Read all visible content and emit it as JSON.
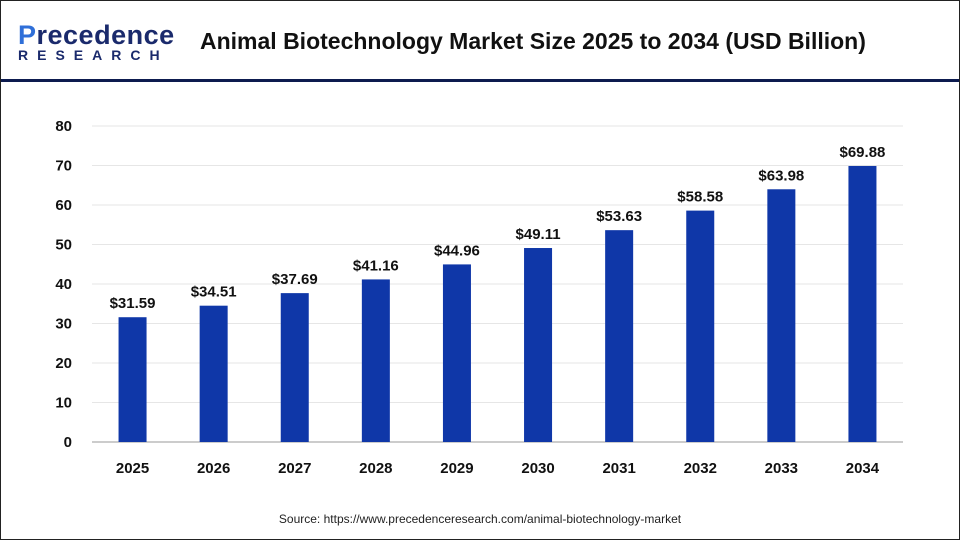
{
  "logo": {
    "line1_a": "P",
    "line1_b": "recedence",
    "line2": "RESEARCH"
  },
  "title": "Animal Biotechnology Market Size 2025 to 2034 (USD Billion)",
  "source": "Source: https://www.precedenceresearch.com/animal-biotechnology-market",
  "colors": {
    "bar": "#0f37a8",
    "header_line": "#0d1b4f"
  },
  "chart_data": {
    "type": "bar",
    "title": "Animal Biotechnology Market Size 2025 to 2034 (USD Billion)",
    "categories": [
      "2025",
      "2026",
      "2027",
      "2028",
      "2029",
      "2030",
      "2031",
      "2032",
      "2033",
      "2034"
    ],
    "values": [
      31.59,
      34.51,
      37.69,
      41.16,
      44.96,
      49.11,
      53.63,
      58.58,
      63.98,
      69.88
    ],
    "data_labels": [
      "$31.59",
      "$34.51",
      "$37.69",
      "$41.16",
      "$44.96",
      "$49.11",
      "$53.63",
      "$58.58",
      "$63.98",
      "$69.88"
    ],
    "yticks": [
      0,
      10,
      20,
      30,
      40,
      50,
      60,
      70,
      80
    ],
    "ylim": [
      0,
      80
    ],
    "grid": true,
    "xlabel": "",
    "ylabel": ""
  }
}
